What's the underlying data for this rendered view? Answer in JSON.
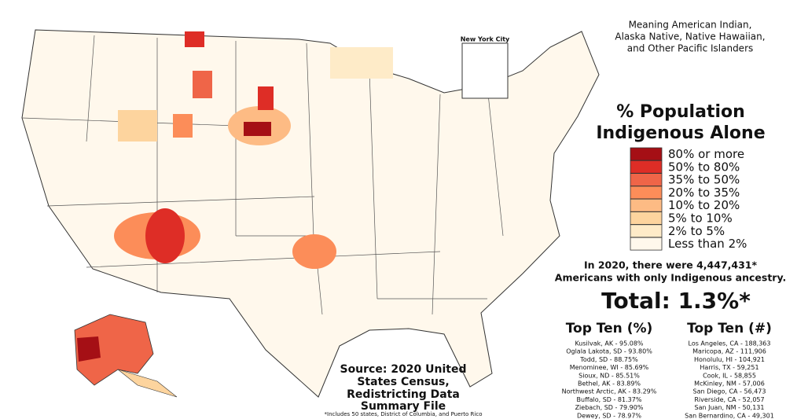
{
  "note": [
    "Meaning American Indian,",
    "Alaska Native, Native Hawaiian,",
    "and Other Pacific Islanders"
  ],
  "inset_label": "New York City",
  "legend": {
    "title": [
      "% Population",
      "Indigenous Alone"
    ],
    "items": [
      {
        "label": "80% or more",
        "color": "#a50f15"
      },
      {
        "label": "50% to 80%",
        "color": "#de2d26"
      },
      {
        "label": "35% to 50%",
        "color": "#ef6548"
      },
      {
        "label": "20% to 35%",
        "color": "#fc8d59"
      },
      {
        "label": "10% to 20%",
        "color": "#fdbb84"
      },
      {
        "label": "5% to 10%",
        "color": "#fdd49e"
      },
      {
        "label": "2% to 5%",
        "color": "#feebc8"
      },
      {
        "label": "Less than 2%",
        "color": "#fff8ec"
      }
    ]
  },
  "summary": [
    "In 2020, there were 4,447,431*",
    "Americans with only Indigenous ancestry."
  ],
  "total": "Total: 1.3%*",
  "top_pct": {
    "title": "Top Ten (%)",
    "rows": [
      "Kusilvak, AK - 95.08%",
      "Oglala Lakota, SD - 93.80%",
      "Todd, SD - 88.75%",
      "Menominee, WI - 85.69%",
      "Sioux, ND - 85.51%",
      "Bethel, AK - 83.89%",
      "Northwest Arctic, AK - 83.29%",
      "Buffalo, SD - 81.37%",
      "Ziebach, SD - 79.90%",
      "Dewey, SD - 78.97%"
    ]
  },
  "top_num": {
    "title": "Top Ten (#)",
    "rows": [
      "Los Angeles, CA - 188,363",
      "Maricopa, AZ - 111,906",
      "Honolulu, HI - 104,921",
      "Harris, TX - 59,251",
      "Cook, IL - 58,855",
      "McKinley, NM - 57,006",
      "San Diego, CA - 56,473",
      "Riverside, CA - 52,057",
      "San Juan, NM - 50,131",
      "San Bernardino, CA - 49,301"
    ]
  },
  "source": [
    "Source: 2020 United",
    "States Census,",
    "Redistricting Data",
    "Summary File"
  ],
  "footnote": "*Includes 50 states, District of Columbia, and Puerto Rico"
}
